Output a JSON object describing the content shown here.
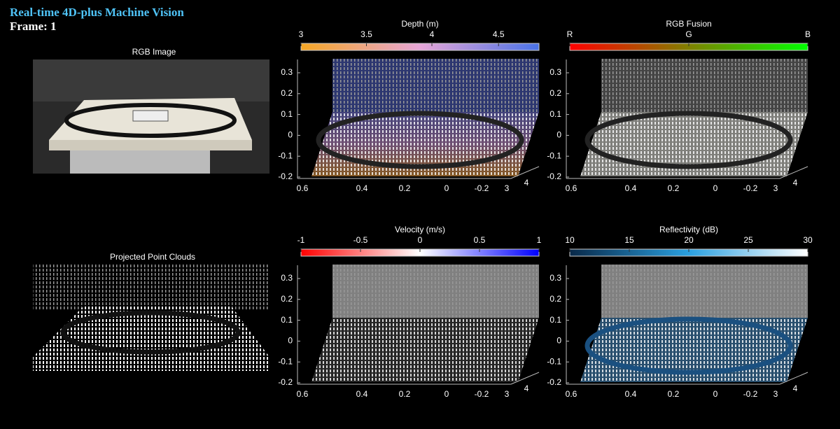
{
  "header": {
    "title": "Real-time 4D-plus Machine Vision",
    "frame": "Frame: 1"
  },
  "images": [
    {
      "title": "RGB Image"
    },
    {
      "title": "Projected Point Clouds"
    }
  ],
  "plots": [
    {
      "colorbar_title": "Depth (m)",
      "colorbar_ticks": [
        3,
        3.5,
        4,
        4.5
      ],
      "yticks": [
        0.3,
        0.2,
        0.1,
        0,
        -0.1,
        -0.2
      ],
      "xticks": [
        0.6,
        0.4,
        0.2,
        0,
        -0.2
      ],
      "zticks": [
        3,
        4
      ]
    },
    {
      "colorbar_title": "RGB Fusion",
      "colorbar_ticks": [
        "R",
        "G",
        "B"
      ],
      "yticks": [
        0.3,
        0.2,
        0.1,
        0,
        -0.1,
        -0.2
      ],
      "xticks": [
        0.6,
        0.4,
        0.2,
        0,
        -0.2
      ],
      "zticks": [
        3,
        4
      ]
    },
    {
      "colorbar_title": "Velocity (m/s)",
      "colorbar_ticks": [
        -1,
        -0.5,
        0,
        0.5,
        1
      ],
      "yticks": [
        0.3,
        0.2,
        0.1,
        0,
        -0.1,
        -0.2
      ],
      "xticks": [
        0.6,
        0.4,
        0.2,
        0,
        -0.2
      ],
      "zticks": [
        3,
        4
      ]
    },
    {
      "colorbar_title": "Reflectivity (dB)",
      "colorbar_ticks": [
        10,
        15,
        20,
        25,
        30
      ],
      "yticks": [
        0.3,
        0.2,
        0.1,
        0,
        -0.1,
        -0.2
      ],
      "xticks": [
        0.6,
        0.4,
        0.2,
        0,
        -0.2
      ],
      "zticks": [
        3,
        4
      ]
    }
  ]
}
